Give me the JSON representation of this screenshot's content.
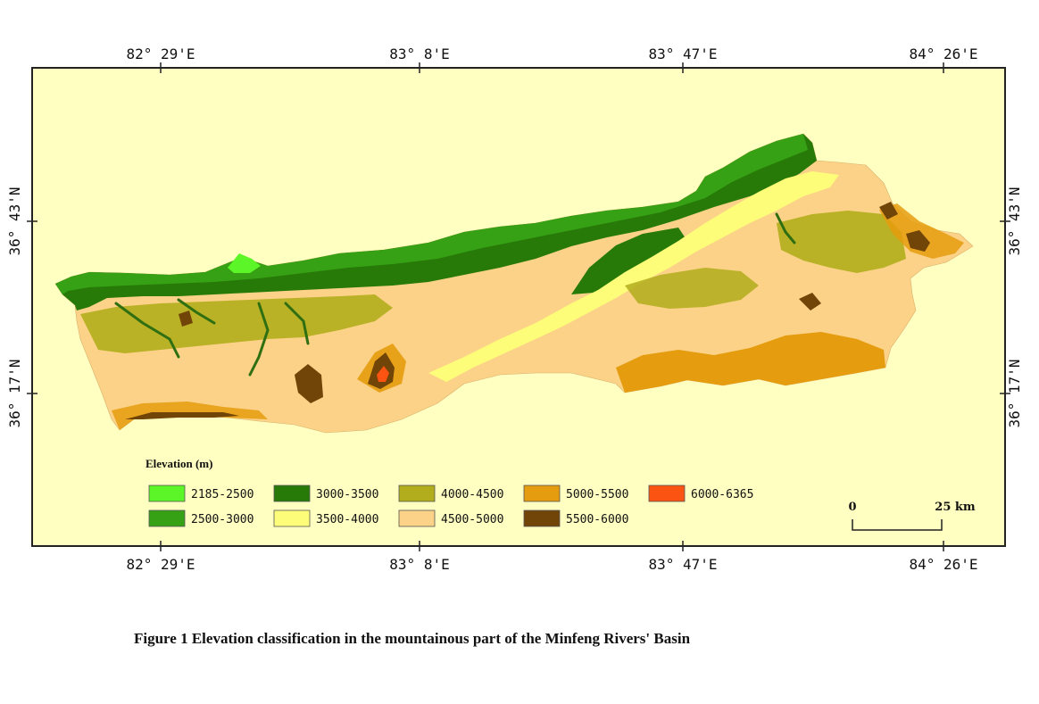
{
  "map": {
    "colors": {
      "background": "#ffffc1",
      "frame": "#222222",
      "river_dark": "#2f6f12"
    },
    "coords": {
      "top": [
        "82° 29'E",
        "83° 8'E",
        "83° 47'E",
        "84° 26'E"
      ],
      "bottom": [
        "82° 29'E",
        "83° 8'E",
        "83° 47'E",
        "84° 26'E"
      ],
      "left": [
        "36° 43'N",
        "36° 17'N"
      ],
      "right": [
        "36° 43'N",
        "36° 17'N"
      ]
    },
    "legend": {
      "title": "Elevation (m)",
      "classes": [
        {
          "label": "2185-2500",
          "color": "#5cf527"
        },
        {
          "label": "2500-3000",
          "color": "#36a114"
        },
        {
          "label": "3000-3500",
          "color": "#277a08"
        },
        {
          "label": "3500-4000",
          "color": "#fdfd7a"
        },
        {
          "label": "4000-4500",
          "color": "#b1ad1c"
        },
        {
          "label": "4500-5000",
          "color": "#fbd287"
        },
        {
          "label": "5000-5500",
          "color": "#e59c0e"
        },
        {
          "label": "5500-6000",
          "color": "#714407"
        },
        {
          "label": "6000-6365",
          "color": "#fb5312"
        }
      ]
    },
    "scale_bar": {
      "start": "0",
      "end": "25 km"
    }
  },
  "caption": "Figure 1  Elevation classification in the mountainous part of the Minfeng Rivers' Basin"
}
